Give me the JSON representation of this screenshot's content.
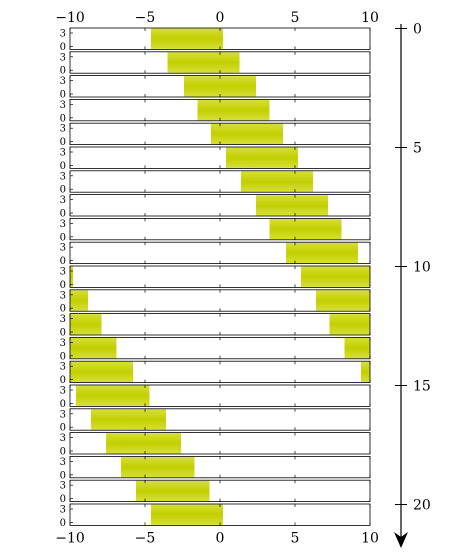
{
  "chart_data": {
    "type": "area",
    "title": "",
    "xlabel": "",
    "ylabel": "",
    "x_ticks": [
      -10,
      -5,
      0,
      5,
      10
    ],
    "x_tick_labels": [
      "−10",
      "−5",
      "0",
      "5",
      "10"
    ],
    "xlim": [
      -10,
      10
    ],
    "row_ylim": [
      0,
      3
    ],
    "row_y_tick_labels": [
      "3",
      "0"
    ],
    "time_ticks": [
      0,
      5,
      10,
      15,
      20
    ],
    "time_tick_labels": [
      "0",
      "5",
      "10",
      "15",
      "20"
    ],
    "time_direction": "downward",
    "series_color": "#c8d400",
    "n_rows": 21,
    "periodic_domain": true,
    "band_intervals": [
      [
        [
          -4.6,
          0.2
        ]
      ],
      [
        [
          -3.5,
          1.3
        ]
      ],
      [
        [
          -2.4,
          2.4
        ]
      ],
      [
        [
          -1.5,
          3.3
        ]
      ],
      [
        [
          -0.6,
          4.2
        ]
      ],
      [
        [
          0.4,
          5.2
        ]
      ],
      [
        [
          1.4,
          6.2
        ]
      ],
      [
        [
          2.4,
          7.2
        ]
      ],
      [
        [
          3.3,
          8.1
        ]
      ],
      [
        [
          4.4,
          9.2
        ]
      ],
      [
        [
          5.4,
          10.0
        ],
        [
          -10.0,
          -9.8
        ]
      ],
      [
        [
          6.4,
          10.0
        ],
        [
          -10.0,
          -8.8
        ]
      ],
      [
        [
          7.3,
          10.0
        ],
        [
          -10.0,
          -7.9
        ]
      ],
      [
        [
          8.3,
          10.0
        ],
        [
          -10.0,
          -6.9
        ]
      ],
      [
        [
          9.4,
          10.0
        ],
        [
          -10.0,
          -5.8
        ]
      ],
      [
        [
          -9.6,
          -4.7
        ]
      ],
      [
        [
          -8.6,
          -3.6
        ]
      ],
      [
        [
          -7.6,
          -2.6
        ]
      ],
      [
        [
          -6.6,
          -1.7
        ]
      ],
      [
        [
          -5.6,
          -0.7
        ]
      ],
      [
        [
          -4.6,
          0.2
        ]
      ]
    ]
  }
}
